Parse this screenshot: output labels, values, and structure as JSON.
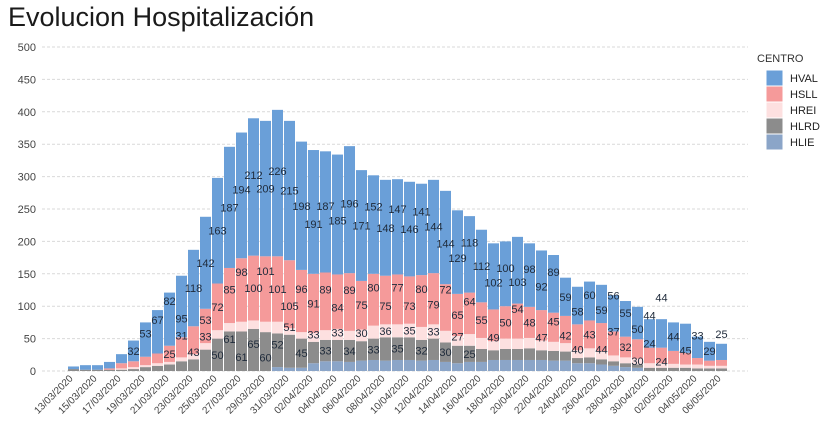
{
  "chart_data": {
    "type": "bar",
    "stacked": true,
    "title": "Evolucion Hospitalización",
    "xlabel": "",
    "ylabel": "",
    "ylim": [
      0,
      500
    ],
    "yticks": [
      0,
      50,
      100,
      150,
      200,
      250,
      300,
      350,
      400,
      450,
      500
    ],
    "grid": true,
    "legend": {
      "title": "CENTRO",
      "placement": "right"
    },
    "categories": [
      "13/03/2020",
      "14/03/2020",
      "15/03/2020",
      "16/03/2020",
      "17/03/2020",
      "18/03/2020",
      "19/03/2020",
      "20/03/2020",
      "21/03/2020",
      "22/03/2020",
      "23/03/2020",
      "24/03/2020",
      "25/03/2020",
      "26/03/2020",
      "27/03/2020",
      "28/03/2020",
      "29/03/2020",
      "30/03/2020",
      "31/03/2020",
      "01/04/2020",
      "02/04/2020",
      "03/04/2020",
      "04/04/2020",
      "05/04/2020",
      "06/04/2020",
      "07/04/2020",
      "08/04/2020",
      "09/04/2020",
      "10/04/2020",
      "11/04/2020",
      "12/04/2020",
      "13/04/2020",
      "14/04/2020",
      "15/04/2020",
      "16/04/2020",
      "17/04/2020",
      "18/04/2020",
      "19/04/2020",
      "20/04/2020",
      "21/04/2020",
      "22/04/2020",
      "23/04/2020",
      "24/04/2020",
      "25/04/2020",
      "26/04/2020",
      "27/04/2020",
      "28/04/2020",
      "29/04/2020",
      "30/04/2020",
      "01/05/2020",
      "02/05/2020",
      "03/05/2020",
      "04/05/2020",
      "05/05/2020",
      "06/05/2020"
    ],
    "x_tick_labels": [
      "13/03/2020",
      "15/03/2020",
      "17/03/2020",
      "19/03/2020",
      "21/03/2020",
      "23/03/2020",
      "25/03/2020",
      "27/03/2020",
      "29/03/2020",
      "31/03/2020",
      "02/04/2020",
      "04/04/2020",
      "06/04/2020",
      "08/04/2020",
      "10/04/2020",
      "12/04/2020",
      "14/04/2020",
      "16/04/2020",
      "18/04/2020",
      "20/04/2020",
      "22/04/2020",
      "24/04/2020",
      "26/04/2020",
      "28/04/2020",
      "30/04/2020",
      "02/05/2020",
      "04/05/2020",
      "06/05/2020"
    ],
    "series": [
      {
        "name": "HVAL",
        "color": "#6a9fd8",
        "labeled": true,
        "values": [
          4,
          7,
          7,
          10,
          14,
          32,
          53,
          67,
          82,
          95,
          118,
          142,
          163,
          187,
          194,
          212,
          209,
          226,
          215,
          198,
          191,
          187,
          185,
          196,
          171,
          152,
          148,
          147,
          146,
          141,
          144,
          144,
          129,
          118,
          112,
          102,
          100,
          103,
          98,
          92,
          89,
          59,
          58,
          60,
          59,
          56,
          55,
          50,
          44,
          44,
          44,
          45,
          33,
          29,
          25
        ]
      },
      {
        "name": "HSLL",
        "color": "#f59a9a",
        "labeled": true,
        "values": [
          0,
          0,
          0,
          2,
          8,
          9,
          13,
          15,
          25,
          31,
          43,
          53,
          72,
          85,
          98,
          100,
          101,
          101,
          105,
          96,
          91,
          89,
          84,
          89,
          75,
          80,
          75,
          77,
          73,
          80,
          79,
          72,
          65,
          64,
          55,
          49,
          50,
          54,
          48,
          47,
          45,
          42,
          40,
          43,
          44,
          37,
          32,
          30,
          24,
          24,
          20,
          18,
          10,
          8,
          9
        ]
      },
      {
        "name": "HREI",
        "color": "#fde0e0",
        "labeled": false,
        "values": [
          0,
          0,
          0,
          0,
          2,
          3,
          3,
          4,
          4,
          6,
          8,
          10,
          13,
          13,
          15,
          13,
          16,
          18,
          10,
          10,
          14,
          15,
          17,
          14,
          18,
          20,
          20,
          20,
          21,
          20,
          22,
          18,
          15,
          18,
          17,
          14,
          16,
          16,
          16,
          15,
          14,
          13,
          12,
          14,
          12,
          9,
          9,
          9,
          7,
          7,
          6,
          5,
          6,
          4,
          4
        ]
      },
      {
        "name": "HLRD",
        "color": "#8c8c8c",
        "labeled": true,
        "values": [
          3,
          2,
          2,
          2,
          2,
          3,
          6,
          8,
          10,
          15,
          18,
          33,
          50,
          61,
          61,
          65,
          60,
          52,
          51,
          45,
          33,
          33,
          33,
          34,
          30,
          33,
          36,
          35,
          35,
          32,
          33,
          30,
          27,
          25,
          20,
          15,
          17,
          17,
          18,
          15,
          15,
          14,
          8,
          9,
          8,
          7,
          6,
          5,
          5,
          5,
          5,
          5,
          4,
          4,
          4
        ]
      },
      {
        "name": "HLIE",
        "color": "#8ba5c8",
        "labeled": false,
        "values": [
          0,
          0,
          0,
          0,
          0,
          0,
          0,
          0,
          0,
          0,
          0,
          0,
          0,
          0,
          0,
          0,
          0,
          6,
          5,
          5,
          12,
          15,
          15,
          14,
          16,
          17,
          16,
          17,
          17,
          16,
          17,
          14,
          12,
          14,
          14,
          17,
          17,
          17,
          17,
          17,
          16,
          16,
          12,
          12,
          10,
          8,
          6,
          5,
          0,
          0,
          0,
          0,
          0,
          0,
          0
        ]
      }
    ],
    "stack_order_bottom_to_top": [
      "HLIE",
      "HLRD",
      "HREI",
      "HSLL",
      "HVAL"
    ]
  }
}
